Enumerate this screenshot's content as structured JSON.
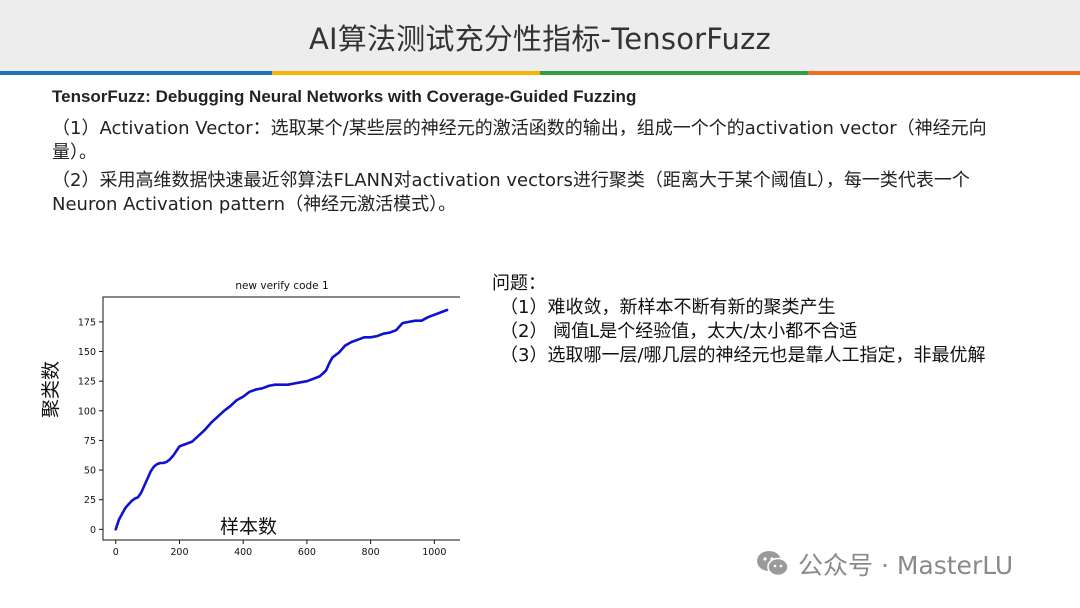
{
  "header": {
    "title": "AI算法测试充分性指标-TensorFuzz"
  },
  "content": {
    "subtitle": "TensorFuzz: Debugging Neural Networks with Coverage-Guided Fuzzing",
    "para1": "（1）Activation Vector：选取某个/某些层的神经元的激活函数的输出，组成一个个的activation vector（神经元向量）。",
    "para2": "（2）采用高维数据快速最近邻算法FLANN对activation vectors进行聚类（距离大于某个阈值L），每一类代表一个Neuron Activation pattern（神经元激活模式）。"
  },
  "issues": {
    "heading": "问题：",
    "items": [
      "（1）难收敛，新样本不断有新的聚类产生",
      "（2） 阈值L是个经验值，太大/太小都不合适",
      "（3）选取哪一层/哪几层的神经元也是靠人工指定，非最优解"
    ]
  },
  "chart_data": {
    "type": "line",
    "title": "new verify code 1",
    "xlabel": "样本数",
    "ylabel": "聚类数",
    "xlim": [
      -40,
      1090
    ],
    "ylim": [
      -9,
      196
    ],
    "xticks": [
      0,
      200,
      400,
      600,
      800,
      1000
    ],
    "yticks": [
      0,
      25,
      50,
      75,
      100,
      125,
      150,
      175
    ],
    "grid": false,
    "series": [
      {
        "color": "#1010d0",
        "x": [
          0,
          10,
          20,
          30,
          40,
          50,
          60,
          70,
          80,
          90,
          100,
          110,
          120,
          130,
          140,
          150,
          160,
          170,
          180,
          200,
          220,
          240,
          260,
          280,
          300,
          320,
          340,
          360,
          380,
          400,
          420,
          440,
          460,
          480,
          500,
          520,
          540,
          560,
          580,
          600,
          620,
          640,
          660,
          670,
          680,
          690,
          700,
          720,
          740,
          760,
          780,
          800,
          820,
          840,
          860,
          880,
          900,
          920,
          940,
          960,
          980,
          1000,
          1020,
          1040
        ],
        "y": [
          0,
          8,
          13,
          18,
          21,
          24,
          26,
          27,
          31,
          37,
          43,
          49,
          53,
          55,
          56,
          56,
          57,
          59,
          62,
          70,
          72,
          74,
          79,
          84,
          90,
          95,
          100,
          104,
          109,
          112,
          116,
          118,
          119,
          121,
          122,
          122,
          122,
          123,
          124,
          125,
          127,
          129,
          134,
          140,
          145,
          147,
          149,
          155,
          158,
          160,
          162,
          162,
          163,
          165,
          166,
          168,
          174,
          175,
          176,
          176,
          179,
          181,
          183,
          185
        ]
      }
    ]
  },
  "watermark": {
    "text": "公众号 · MasterLU"
  }
}
